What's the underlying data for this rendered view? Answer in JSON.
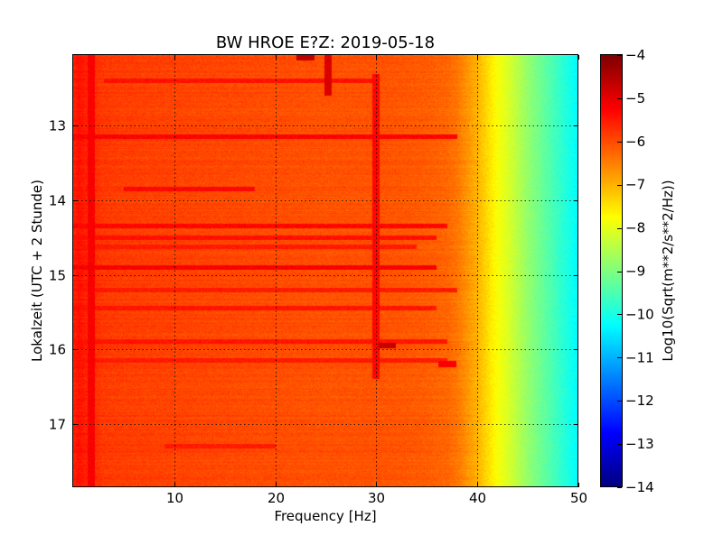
{
  "chart_data": {
    "type": "heatmap",
    "title": "BW HROE E?Z: 2019-05-18",
    "xlabel": "Frequency [Hz]",
    "ylabel": "Lokalzeit (UTC + 2 Stunde)",
    "xlim": [
      0,
      50
    ],
    "ylim": [
      12.05,
      17.85
    ],
    "y_inverted": true,
    "xticks": [
      10,
      20,
      30,
      40,
      50
    ],
    "xtick_labels": [
      "10",
      "20",
      "30",
      "40",
      "50"
    ],
    "yticks": [
      13,
      14,
      15,
      16,
      17
    ],
    "ytick_labels": [
      "13",
      "14",
      "15",
      "16",
      "17"
    ],
    "grid": true,
    "colormap": "jet",
    "colorbar": {
      "label": "Log10(Sqrt(m**2/s**2/Hz))",
      "range": [
        -14,
        -4
      ],
      "ticks": [
        -4,
        -5,
        -6,
        -7,
        -8,
        -9,
        -10,
        -11,
        -12,
        -13,
        -14
      ],
      "tick_labels": [
        "−4",
        "−5",
        "−6",
        "−7",
        "−8",
        "−9",
        "−10",
        "−11",
        "−12",
        "−13",
        "−14"
      ]
    },
    "spectrum_profile": {
      "frequency_hz": [
        0,
        0.5,
        1,
        2,
        3,
        5,
        10,
        15,
        20,
        25,
        30,
        33,
        35,
        37,
        38,
        39,
        40,
        41,
        42,
        43,
        44,
        45,
        46,
        47,
        48,
        49,
        50
      ],
      "level": [
        -5.6,
        -5.4,
        -5.5,
        -5.7,
        -5.8,
        -5.85,
        -5.9,
        -5.95,
        -6.0,
        -6.05,
        -6.05,
        -6.1,
        -6.15,
        -6.25,
        -6.4,
        -6.7,
        -7.0,
        -7.4,
        -7.8,
        -8.1,
        -8.45,
        -8.8,
        -9.1,
        -9.4,
        -9.7,
        -10.0,
        -10.3
      ]
    },
    "horizontal_bands": [
      {
        "time": 12.4,
        "fmin": 3,
        "fmax": 30,
        "level": -5.4
      },
      {
        "time": 13.15,
        "fmin": 0,
        "fmax": 38,
        "level": -5.25
      },
      {
        "time": 13.85,
        "fmin": 5,
        "fmax": 18,
        "level": -5.3
      },
      {
        "time": 14.35,
        "fmin": 0,
        "fmax": 37,
        "level": -5.3
      },
      {
        "time": 14.5,
        "fmin": 0,
        "fmax": 36,
        "level": -5.4
      },
      {
        "time": 14.62,
        "fmin": 0,
        "fmax": 34,
        "level": -5.5
      },
      {
        "time": 14.9,
        "fmin": 0,
        "fmax": 36,
        "level": -5.2
      },
      {
        "time": 15.2,
        "fmin": 0,
        "fmax": 38,
        "level": -5.5
      },
      {
        "time": 15.45,
        "fmin": 0,
        "fmax": 36,
        "level": -5.45
      },
      {
        "time": 15.9,
        "fmin": 0,
        "fmax": 37,
        "level": -5.45
      },
      {
        "time": 16.15,
        "fmin": 0,
        "fmax": 37,
        "level": -5.5
      },
      {
        "time": 17.3,
        "fmin": 9,
        "fmax": 20,
        "level": -5.5
      }
    ],
    "vertical_features": [
      {
        "freq": 25.2,
        "tmin": 12.05,
        "tmax": 12.6,
        "level": -4.9
      },
      {
        "freq": 30.0,
        "tmin": 12.3,
        "tmax": 16.4,
        "level": -5.3
      },
      {
        "freq": 1.8,
        "tmin": 12.05,
        "tmax": 17.85,
        "level": -5.2
      }
    ],
    "spots": [
      {
        "freq": 23.0,
        "time": 12.08,
        "level": -4.6
      },
      {
        "freq": 31.0,
        "time": 15.95,
        "level": -4.7
      },
      {
        "freq": 37.0,
        "time": 16.2,
        "level": -5.2
      }
    ]
  }
}
